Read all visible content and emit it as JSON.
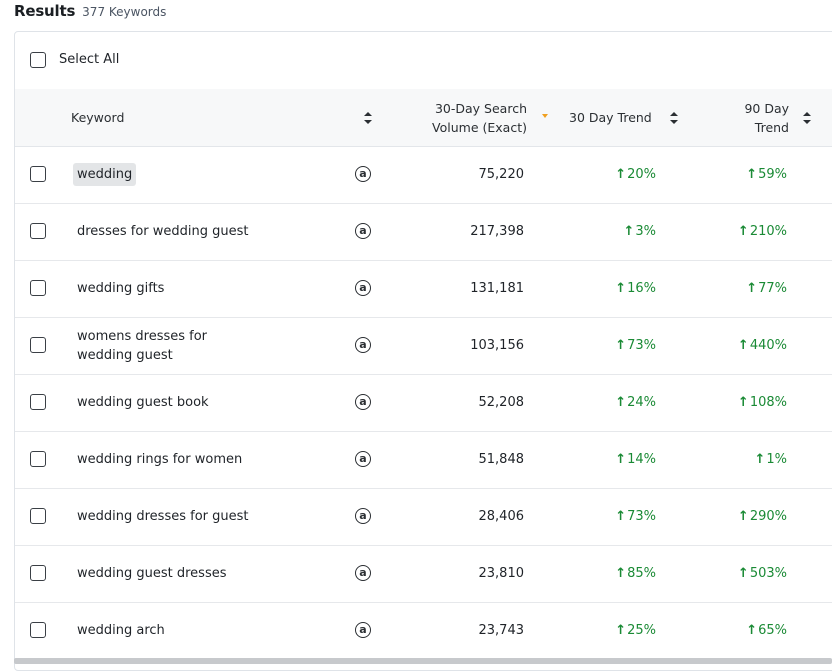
{
  "header": {
    "title": "Results",
    "count": "377 Keywords"
  },
  "select_all": {
    "label": "Select All"
  },
  "columns": {
    "keyword": "Keyword",
    "volume_line1": "30-Day Search",
    "volume_line2": "Volume (Exact)",
    "trend30": "30 Day Trend",
    "trend90_line1": "90 Day",
    "trend90_line2": "Trend"
  },
  "colors": {
    "trend_up": "#1a8a35",
    "active_sort": "#f0a020"
  },
  "rows": [
    {
      "keyword": "wedding",
      "source_icon": "amazon-icon",
      "volume": "75,220",
      "trend30": "20%",
      "trend90": "59%",
      "highlighted": true
    },
    {
      "keyword": "dresses for wedding guest",
      "source_icon": "amazon-icon",
      "volume": "217,398",
      "trend30": "3%",
      "trend90": "210%"
    },
    {
      "keyword": "wedding gifts",
      "source_icon": "amazon-icon",
      "volume": "131,181",
      "trend30": "16%",
      "trend90": "77%"
    },
    {
      "keyword": "womens dresses for wedding guest",
      "source_icon": "amazon-icon",
      "volume": "103,156",
      "trend30": "73%",
      "trend90": "440%"
    },
    {
      "keyword": "wedding guest book",
      "source_icon": "amazon-icon",
      "volume": "52,208",
      "trend30": "24%",
      "trend90": "108%"
    },
    {
      "keyword": "wedding rings for women",
      "source_icon": "amazon-icon",
      "volume": "51,848",
      "trend30": "14%",
      "trend90": "1%"
    },
    {
      "keyword": "wedding dresses for guest",
      "source_icon": "amazon-icon",
      "volume": "28,406",
      "trend30": "73%",
      "trend90": "290%"
    },
    {
      "keyword": "wedding guest dresses",
      "source_icon": "amazon-icon",
      "volume": "23,810",
      "trend30": "85%",
      "trend90": "503%"
    },
    {
      "keyword": "wedding arch",
      "source_icon": "amazon-icon",
      "volume": "23,743",
      "trend30": "25%",
      "trend90": "65%"
    }
  ]
}
